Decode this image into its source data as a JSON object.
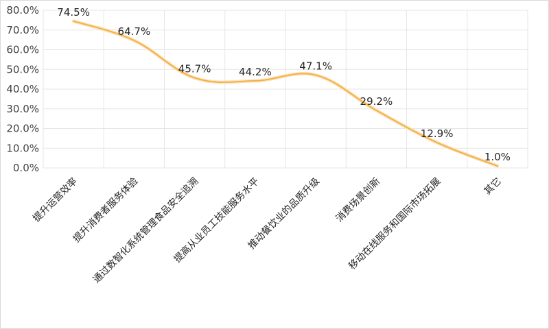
{
  "chart_data": {
    "type": "line",
    "categories": [
      "提升运营效率",
      "提升消费者服务体验",
      "通过数智化系统管理食品安全追溯",
      "提高从业员工技能服务水平",
      "推动餐饮业的品质升级",
      "消费场景创新",
      "移动在线服务和国际市场拓展",
      "其它"
    ],
    "values": [
      74.5,
      64.7,
      45.7,
      44.2,
      47.1,
      29.2,
      12.9,
      1.0
    ],
    "data_labels": [
      "74.5%",
      "64.7%",
      "45.7%",
      "44.2%",
      "47.1%",
      "29.2%",
      "12.9%",
      "1.0%"
    ],
    "y_ticks": [
      "0.0%",
      "10.0%",
      "20.0%",
      "30.0%",
      "40.0%",
      "50.0%",
      "60.0%",
      "70.0%",
      "80.0%"
    ],
    "ylim": [
      0,
      80
    ],
    "y_unit": "%",
    "grid": true,
    "smooth": true,
    "line_color": "#f5b041",
    "line_halo_color": "#fbe3c0",
    "grid_color": "#e6e6e6",
    "title": "",
    "xlabel": "",
    "ylabel": ""
  }
}
